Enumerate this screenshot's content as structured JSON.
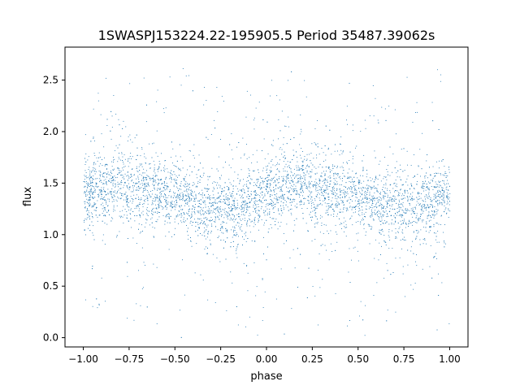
{
  "chart_data": {
    "type": "scatter",
    "title": "1SWASPJ153224.22-195905.5 Period 35487.39062s",
    "xlabel": "phase",
    "ylabel": "flux",
    "xlim": [
      -1.1,
      1.1
    ],
    "ylim": [
      -0.09,
      2.82
    ],
    "xticks": [
      -1.0,
      -0.75,
      -0.5,
      -0.25,
      0.0,
      0.25,
      0.5,
      0.75,
      1.0
    ],
    "xtick_labels": [
      "−1.00",
      "−0.75",
      "−0.50",
      "−0.25",
      "0.00",
      "0.25",
      "0.50",
      "0.75",
      "1.00"
    ],
    "yticks": [
      0.0,
      0.5,
      1.0,
      1.5,
      2.0,
      2.5
    ],
    "ytick_labels": [
      "0.0",
      "0.5",
      "1.0",
      "1.5",
      "2.0",
      "2.5"
    ],
    "x_range": [
      -1.0,
      1.0
    ],
    "grid": false,
    "legend": "none",
    "point_color": "#1f77b4",
    "series": [
      {
        "trend": {
          "x": [
            -1.0,
            -0.9,
            -0.8,
            -0.7,
            -0.6,
            -0.5,
            -0.4,
            -0.3,
            -0.2,
            -0.1,
            0.0,
            0.1,
            0.2,
            0.3,
            0.4,
            0.5,
            0.6,
            0.7,
            0.8,
            0.9,
            1.0
          ],
          "y": [
            1.38,
            1.47,
            1.49,
            1.46,
            1.41,
            1.36,
            1.31,
            1.27,
            1.27,
            1.31,
            1.38,
            1.47,
            1.49,
            1.46,
            1.41,
            1.36,
            1.31,
            1.27,
            1.27,
            1.31,
            1.38
          ]
        },
        "typical_spread": 0.17
      }
    ]
  }
}
